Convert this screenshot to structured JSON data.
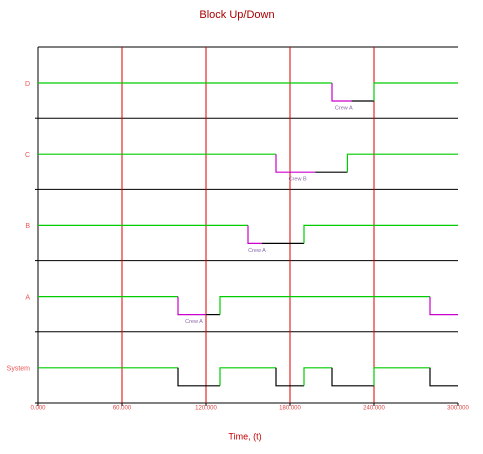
{
  "chart_data": {
    "type": "updown",
    "title": "Block Up/Down",
    "x_label": "Time, (t)",
    "xlim": [
      0,
      300000
    ],
    "xticks": [
      {
        "value": 0,
        "label": "0.000"
      },
      {
        "value": 60000,
        "label": "60.000"
      },
      {
        "value": 120000,
        "label": "120.000"
      },
      {
        "value": 180000,
        "label": "180.000"
      },
      {
        "value": 240000,
        "label": "240.000"
      },
      {
        "value": 300000,
        "label": "300.000"
      }
    ],
    "grid": true,
    "grid_color": "#dd0000",
    "rows": [
      {
        "name": "D",
        "segments": [
          {
            "start": 0,
            "end": 210000,
            "up": true,
            "color": "#00cc00"
          },
          {
            "start": 210000,
            "end": 224000,
            "up": false,
            "color": "#cc00cc",
            "label": "Crew A"
          },
          {
            "start": 224000,
            "end": 240000,
            "up": false,
            "color": "#000000"
          },
          {
            "start": 240000,
            "end": 300000,
            "up": true,
            "color": "#00cc00"
          }
        ]
      },
      {
        "name": "C",
        "segments": [
          {
            "start": 0,
            "end": 170000,
            "up": true,
            "color": "#00cc00"
          },
          {
            "start": 170000,
            "end": 198000,
            "up": false,
            "color": "#cc00cc",
            "label": "Crew B"
          },
          {
            "start": 198000,
            "end": 221000,
            "up": false,
            "color": "#000000"
          },
          {
            "start": 221000,
            "end": 300000,
            "up": true,
            "color": "#00cc00"
          }
        ]
      },
      {
        "name": "B",
        "segments": [
          {
            "start": 0,
            "end": 150000,
            "up": true,
            "color": "#00cc00"
          },
          {
            "start": 150000,
            "end": 160000,
            "up": false,
            "color": "#cc00cc",
            "label": "Crew A"
          },
          {
            "start": 160000,
            "end": 190000,
            "up": false,
            "color": "#000000"
          },
          {
            "start": 190000,
            "end": 300000,
            "up": true,
            "color": "#00cc00"
          }
        ]
      },
      {
        "name": "A",
        "segments": [
          {
            "start": 0,
            "end": 100000,
            "up": true,
            "color": "#00cc00"
          },
          {
            "start": 100000,
            "end": 120000,
            "up": false,
            "color": "#cc00cc",
            "label": "Crew A"
          },
          {
            "start": 120000,
            "end": 130000,
            "up": false,
            "color": "#000000"
          },
          {
            "start": 130000,
            "end": 280000,
            "up": true,
            "color": "#00cc00"
          },
          {
            "start": 280000,
            "end": 300000,
            "up": false,
            "color": "#cc00cc"
          }
        ]
      },
      {
        "name": "System",
        "segments": [
          {
            "start": 0,
            "end": 100000,
            "up": true,
            "color": "#00cc00"
          },
          {
            "start": 100000,
            "end": 130000,
            "up": false,
            "color": "#000000"
          },
          {
            "start": 130000,
            "end": 170000,
            "up": true,
            "color": "#00cc00"
          },
          {
            "start": 170000,
            "end": 190000,
            "up": false,
            "color": "#000000"
          },
          {
            "start": 190000,
            "end": 210000,
            "up": true,
            "color": "#00cc00"
          },
          {
            "start": 210000,
            "end": 240000,
            "up": false,
            "color": "#000000"
          },
          {
            "start": 240000,
            "end": 280000,
            "up": true,
            "color": "#00cc00"
          },
          {
            "start": 280000,
            "end": 300000,
            "up": false,
            "color": "#000000"
          }
        ]
      }
    ]
  }
}
